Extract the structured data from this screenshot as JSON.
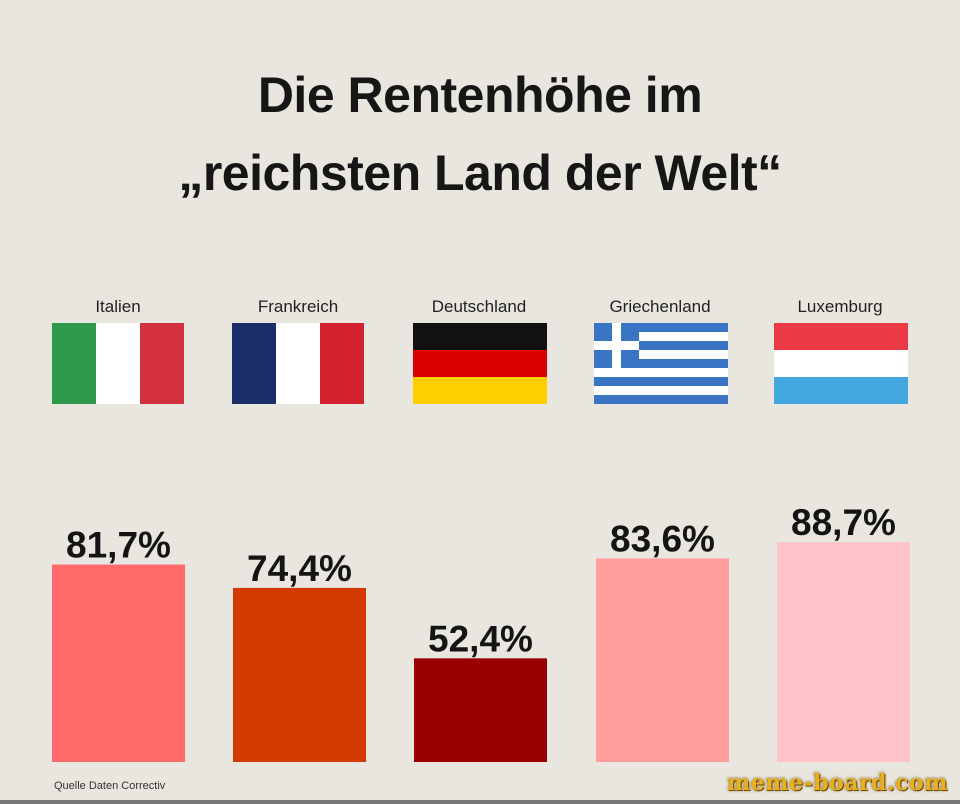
{
  "title_line1": "Die Rentenhöhe im",
  "title_line2": "„reichsten Land der Welt“",
  "source": "Quelle Daten Correctiv",
  "watermark": "meme-board.com",
  "colors": {
    "background": "#e9e6df",
    "italien_bar": "#ff6b6b",
    "frankreich_bar": "#d13a00",
    "deutschland_bar": "#9b0000",
    "griechenland_bar": "#ff9c9c",
    "luxemburg_bar": "#ffc3c7"
  },
  "countries": [
    {
      "name": "Italien",
      "flag_icon": "italy-flag-icon"
    },
    {
      "name": "Frankreich",
      "flag_icon": "france-flag-icon"
    },
    {
      "name": "Deutschland",
      "flag_icon": "germany-flag-icon"
    },
    {
      "name": "Griechenland",
      "flag_icon": "greece-flag-icon"
    },
    {
      "name": "Luxemburg",
      "flag_icon": "luxembourg-flag-icon"
    }
  ],
  "chart_data": {
    "type": "bar",
    "categories": [
      "Italien",
      "Frankreich",
      "Deutschland",
      "Griechenland",
      "Luxemburg"
    ],
    "values": [
      81.7,
      74.4,
      52.4,
      83.6,
      88.7
    ],
    "value_labels": [
      "81,7%",
      "74,4%",
      "52,4%",
      "83,6%",
      "88,7%"
    ],
    "unit": "%",
    "grid": false,
    "legend": "none"
  }
}
